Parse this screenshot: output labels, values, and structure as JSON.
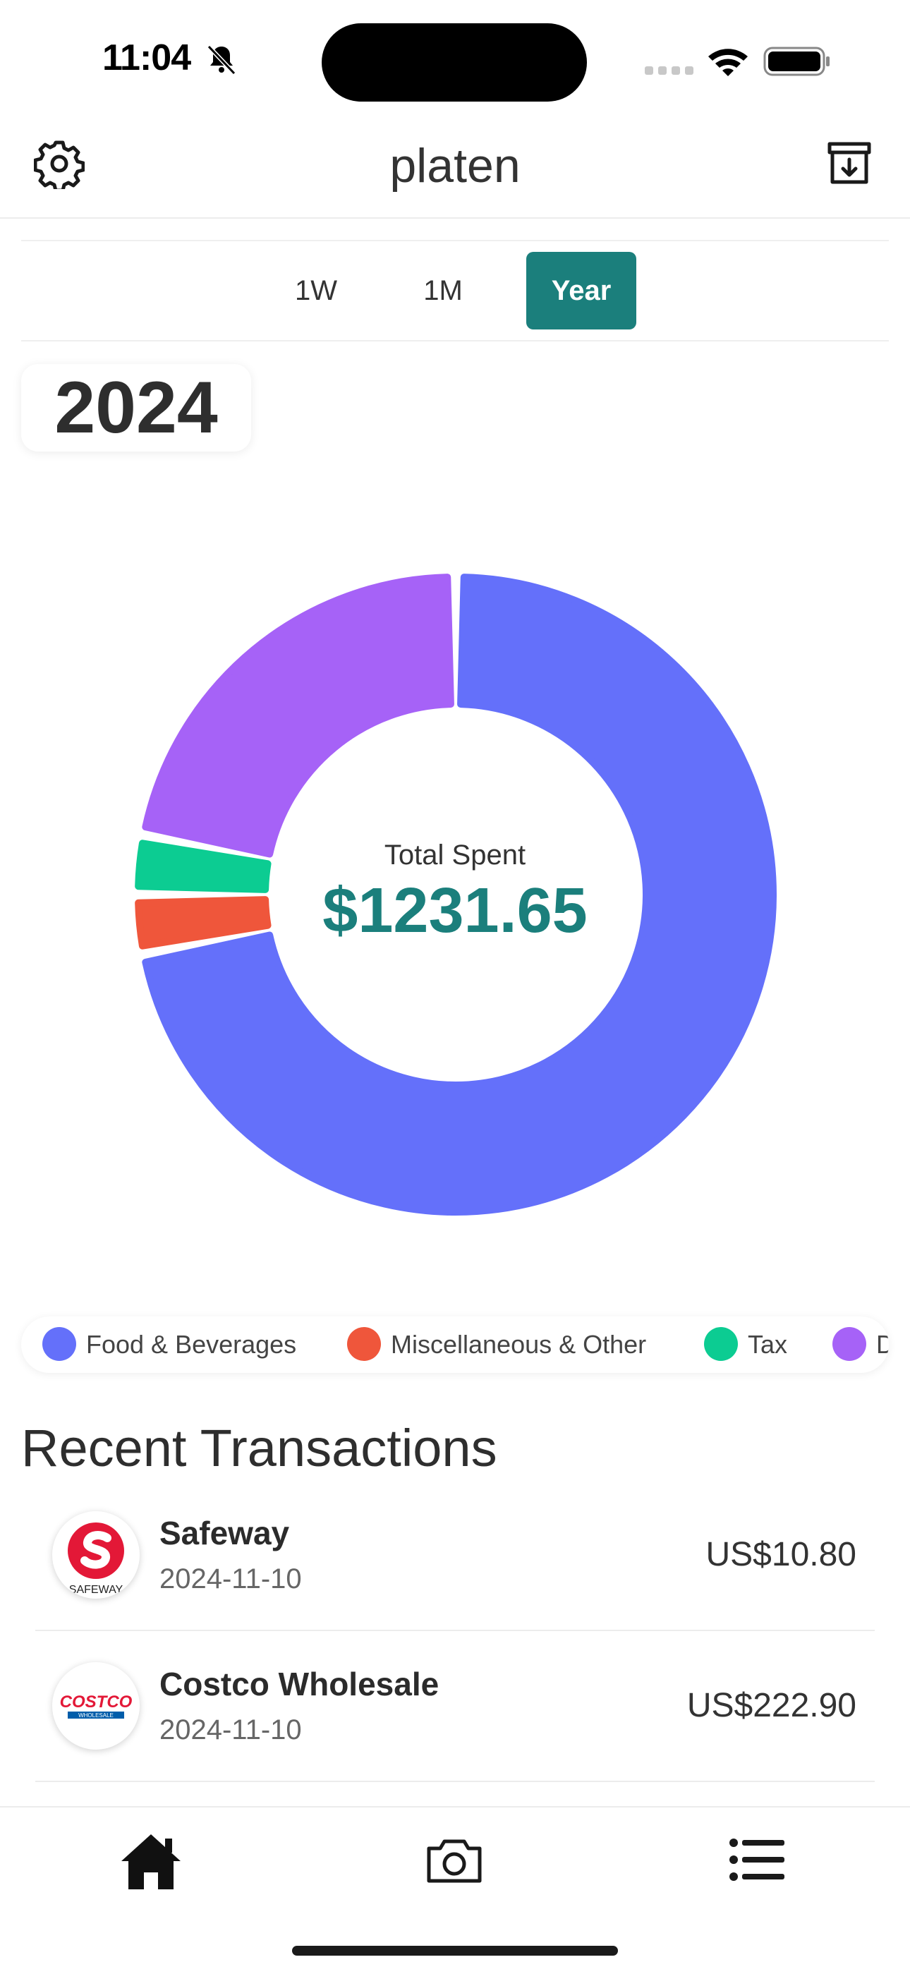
{
  "status_bar": {
    "time": "11:04",
    "icons": [
      "bell-slash-icon",
      "signal-icon",
      "wifi-icon",
      "battery-icon"
    ]
  },
  "header": {
    "title": "platen",
    "left_icon": "gear-icon",
    "right_icon": "archive-download-icon"
  },
  "range_tabs": [
    {
      "label": "1W",
      "selected": false
    },
    {
      "label": "1M",
      "selected": false
    },
    {
      "label": "Year",
      "selected": true
    }
  ],
  "period_label": "2024",
  "summary": {
    "label": "Total Spent",
    "amount": "$1231.65"
  },
  "colors": {
    "accent": "#1b7f7c",
    "food": "#6470fa",
    "misc": "#ef563b",
    "tax": "#0ccc92",
    "other": "#a662f7"
  },
  "chart_data": {
    "type": "pie",
    "style": "donut",
    "categories": [
      "Food & Beverages",
      "Miscellaneous & Other",
      "Tax",
      "D"
    ],
    "values": [
      0.72,
      0.03,
      0.03,
      0.22
    ],
    "value_unit": "fraction of total spent",
    "legend_placement": "bottom"
  },
  "legend": [
    {
      "label": "Food & Beverages",
      "color": "#6470fa"
    },
    {
      "label": "Miscellaneous & Other",
      "color": "#ef563b"
    },
    {
      "label": "Tax",
      "color": "#0ccc92"
    },
    {
      "label": "D",
      "color": "#a662f7"
    }
  ],
  "recent": {
    "title": "Recent Transactions",
    "transactions": [
      {
        "merchant": "Safeway",
        "date": "2024-11-10",
        "amount": "US$10.80",
        "logo_text": "SAFEWAY"
      },
      {
        "merchant": "Costco Wholesale",
        "date": "2024-11-10",
        "amount": "US$222.90",
        "logo_text": "COSTCO",
        "logo_subtext": "WHOLESALE"
      }
    ]
  },
  "tab_bar": {
    "items": [
      {
        "icon": "home-icon",
        "selected": true
      },
      {
        "icon": "camera-icon",
        "selected": false
      },
      {
        "icon": "list-icon",
        "selected": false
      }
    ]
  }
}
